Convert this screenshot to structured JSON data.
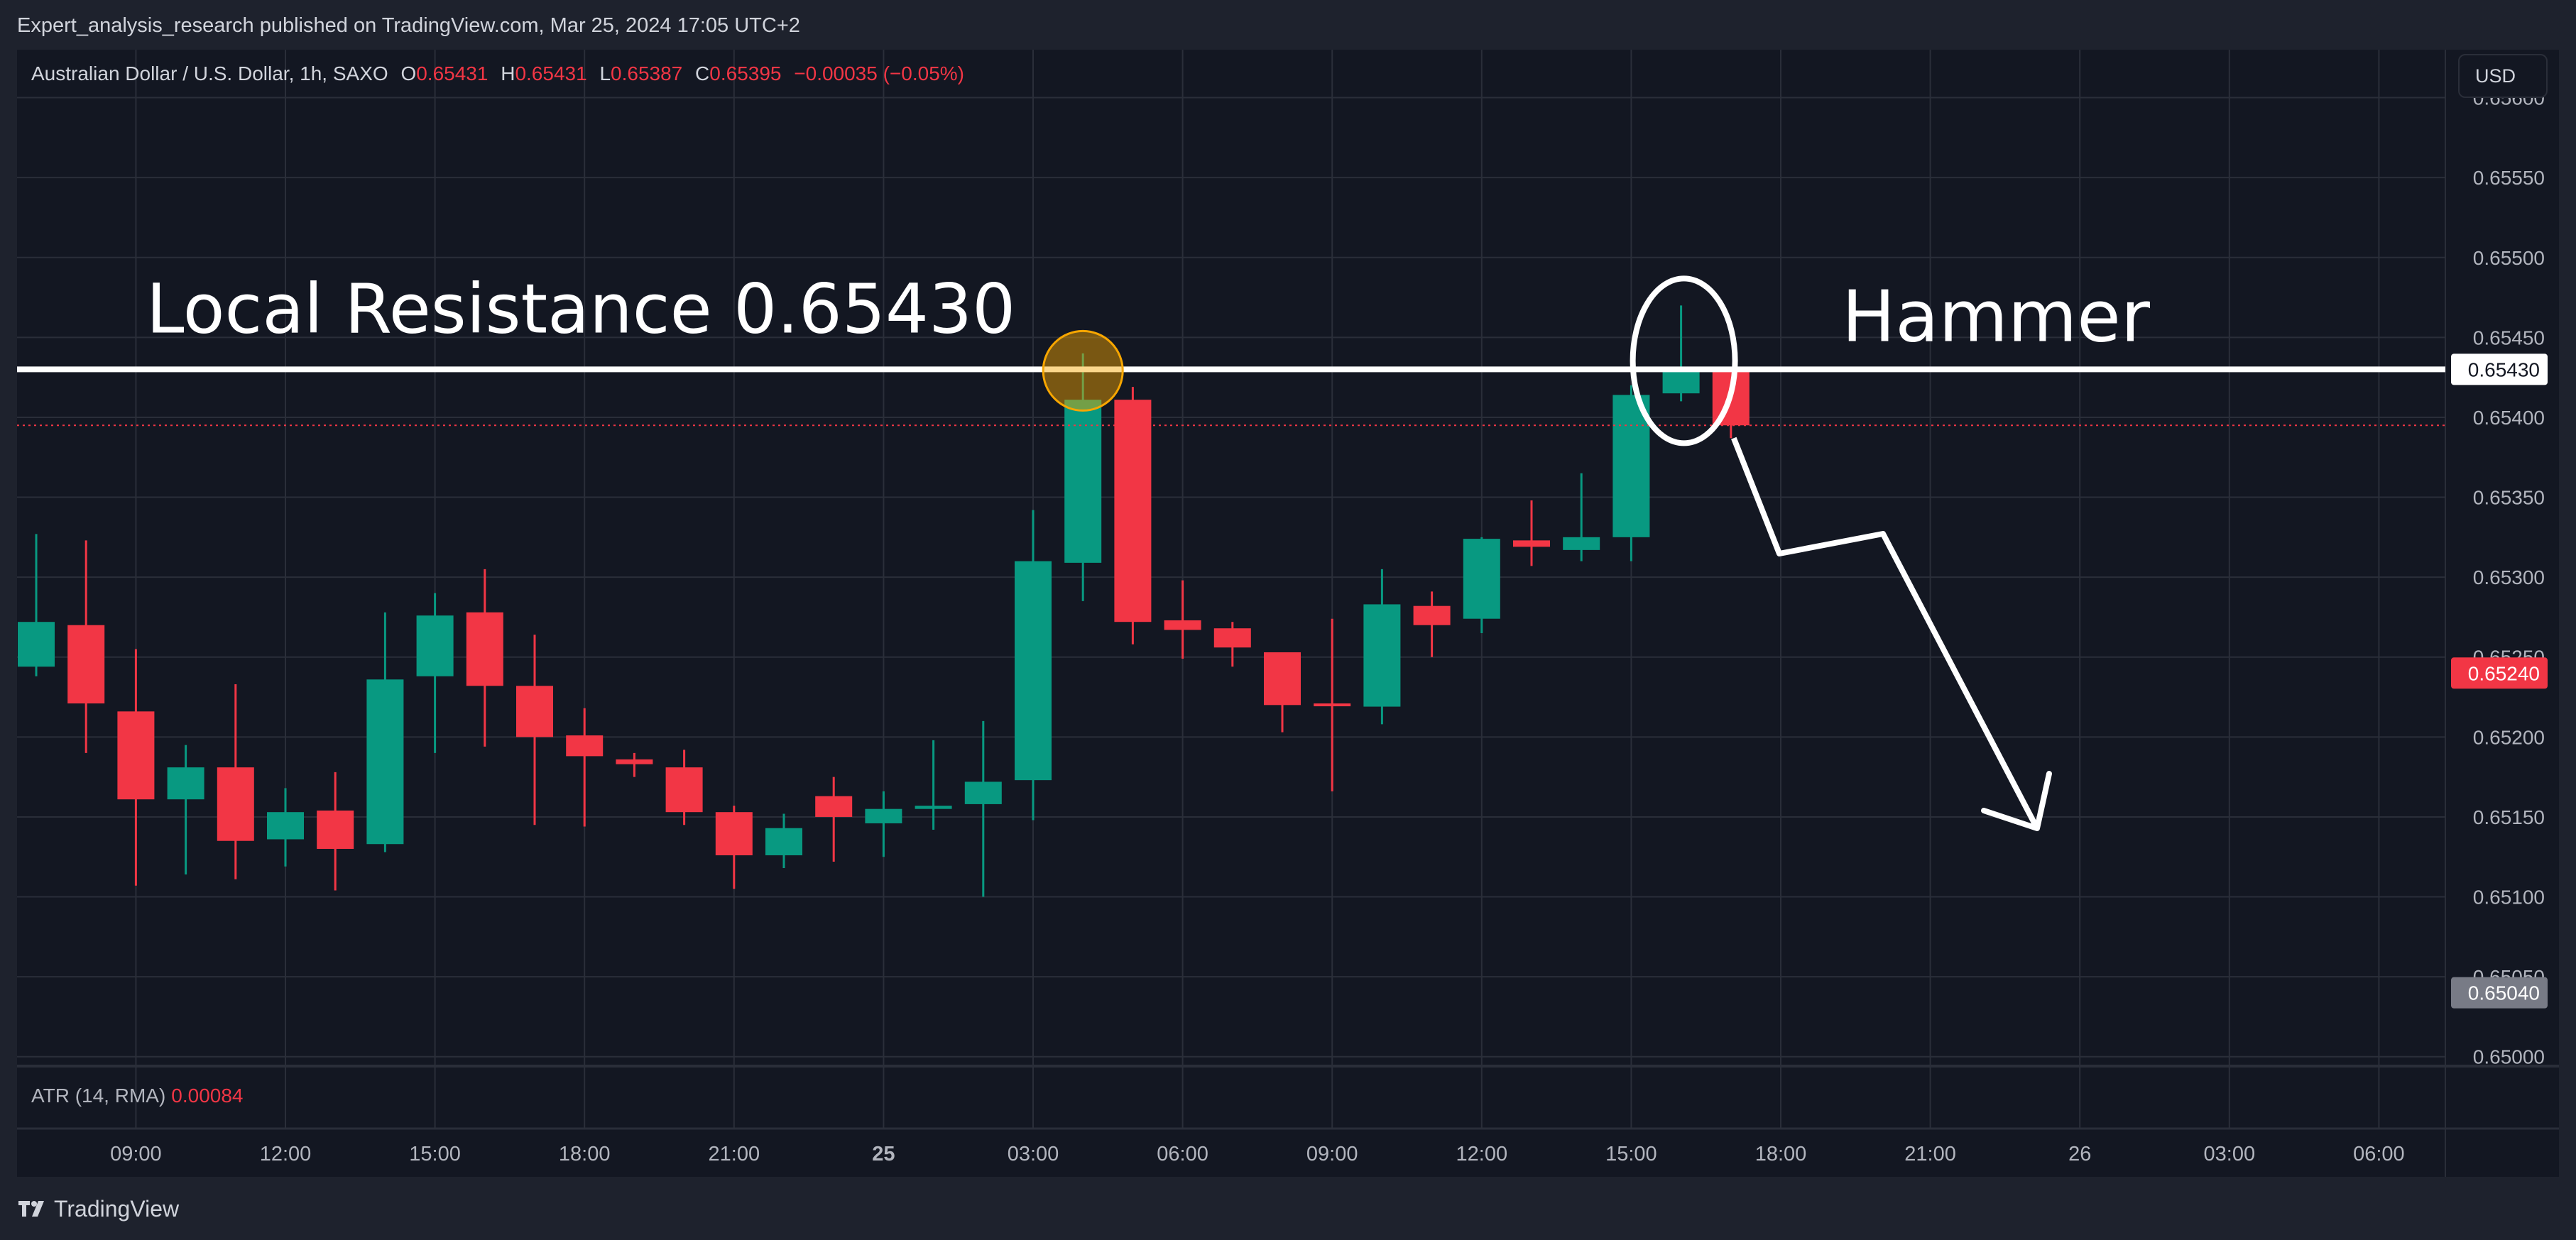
{
  "header": {
    "publisher_line": "Expert_analysis_research published on TradingView.com, Mar 25, 2024 17:05 UTC+2"
  },
  "legend": {
    "symbol": "Australian Dollar / U.S. Dollar, 1h, SAXO",
    "o_label": "O",
    "o_value": "0.65431",
    "h_label": "H",
    "h_value": "0.65431",
    "l_label": "L",
    "l_value": "0.65387",
    "c_label": "C",
    "c_value": "0.65395",
    "change": "−0.00035 (−0.05%)"
  },
  "currency_button": "USD",
  "atr": {
    "label": "ATR (14, RMA)",
    "value": "0.00084"
  },
  "footer": {
    "brand": "TradingView",
    "logo_icon": "tradingview-logo-icon"
  },
  "colors": {
    "up": "#089981",
    "down": "#f23645",
    "background": "#131722",
    "grid": "#2a2e39",
    "axis_text": "#b2b5be",
    "annotation": "#ffffff",
    "highlight_circle": "#f7a600"
  },
  "chart_data": {
    "type": "candlestick",
    "timeframe": "1h",
    "y_axis": {
      "side": "right",
      "ylim": [
        0.64995,
        0.6563
      ],
      "ticks": [
        "0.65000",
        "0.65050",
        "0.65100",
        "0.65150",
        "0.65200",
        "0.65250",
        "0.65300",
        "0.65350",
        "0.65400",
        "0.65450",
        "0.65500",
        "0.65550",
        "0.65600"
      ]
    },
    "x_axis": {
      "labels": [
        "09:00",
        "12:00",
        "15:00",
        "18:00",
        "21:00",
        "25",
        "03:00",
        "06:00",
        "09:00",
        "12:00",
        "15:00",
        "18:00",
        "21:00",
        "26",
        "03:00",
        "06:00"
      ],
      "bold_labels": [
        "25"
      ],
      "start_time": "Mar 24, 2024 07:00"
    },
    "price_labels": [
      {
        "value": 0.6543,
        "text": "0.65430",
        "style": "white"
      },
      {
        "value": 0.6524,
        "text": "0.65240",
        "style": "red"
      },
      {
        "value": 0.6504,
        "text": "0.65040",
        "style": "gray"
      }
    ],
    "current_price_line": 0.65395,
    "grid": true,
    "candles": [
      {
        "o": 0.65244,
        "h": 0.65327,
        "l": 0.65238,
        "c": 0.65272
      },
      {
        "o": 0.6527,
        "h": 0.65323,
        "l": 0.6519,
        "c": 0.65221
      },
      {
        "o": 0.65216,
        "h": 0.65255,
        "l": 0.65107,
        "c": 0.65161
      },
      {
        "o": 0.65161,
        "h": 0.65195,
        "l": 0.65114,
        "c": 0.65181
      },
      {
        "o": 0.65181,
        "h": 0.65233,
        "l": 0.65111,
        "c": 0.65135
      },
      {
        "o": 0.65136,
        "h": 0.65168,
        "l": 0.65119,
        "c": 0.65153
      },
      {
        "o": 0.65154,
        "h": 0.65178,
        "l": 0.65104,
        "c": 0.6513
      },
      {
        "o": 0.65133,
        "h": 0.65278,
        "l": 0.65128,
        "c": 0.65236
      },
      {
        "o": 0.65238,
        "h": 0.6529,
        "l": 0.6519,
        "c": 0.65276
      },
      {
        "o": 0.65278,
        "h": 0.65305,
        "l": 0.65194,
        "c": 0.65232
      },
      {
        "o": 0.65232,
        "h": 0.65264,
        "l": 0.65145,
        "c": 0.652
      },
      {
        "o": 0.65201,
        "h": 0.65218,
        "l": 0.65144,
        "c": 0.65188
      },
      {
        "o": 0.65186,
        "h": 0.6519,
        "l": 0.65175,
        "c": 0.65183
      },
      {
        "o": 0.65181,
        "h": 0.65192,
        "l": 0.65145,
        "c": 0.65153
      },
      {
        "o": 0.65153,
        "h": 0.65157,
        "l": 0.65105,
        "c": 0.65126
      },
      {
        "o": 0.65126,
        "h": 0.65152,
        "l": 0.65118,
        "c": 0.65143
      },
      {
        "o": 0.65163,
        "h": 0.65175,
        "l": 0.65122,
        "c": 0.6515
      },
      {
        "o": 0.65146,
        "h": 0.65166,
        "l": 0.65125,
        "c": 0.65155
      },
      {
        "o": 0.65155,
        "h": 0.65198,
        "l": 0.65142,
        "c": 0.65157
      },
      {
        "o": 0.65158,
        "h": 0.6521,
        "l": 0.651,
        "c": 0.65172
      },
      {
        "o": 0.65173,
        "h": 0.65342,
        "l": 0.65148,
        "c": 0.6531
      },
      {
        "o": 0.65309,
        "h": 0.6544,
        "l": 0.65285,
        "c": 0.65411
      },
      {
        "o": 0.65411,
        "h": 0.65419,
        "l": 0.65258,
        "c": 0.65272
      },
      {
        "o": 0.65273,
        "h": 0.65298,
        "l": 0.65249,
        "c": 0.65267
      },
      {
        "o": 0.65268,
        "h": 0.65272,
        "l": 0.65244,
        "c": 0.65256
      },
      {
        "o": 0.65253,
        "h": 0.65253,
        "l": 0.65203,
        "c": 0.6522
      },
      {
        "o": 0.65221,
        "h": 0.65274,
        "l": 0.65166,
        "c": 0.6522
      },
      {
        "o": 0.65219,
        "h": 0.65305,
        "l": 0.65208,
        "c": 0.65283
      },
      {
        "o": 0.65282,
        "h": 0.65291,
        "l": 0.6525,
        "c": 0.6527
      },
      {
        "o": 0.65274,
        "h": 0.65325,
        "l": 0.65265,
        "c": 0.65324
      },
      {
        "o": 0.65323,
        "h": 0.65348,
        "l": 0.65307,
        "c": 0.65319
      },
      {
        "o": 0.65317,
        "h": 0.65365,
        "l": 0.6531,
        "c": 0.65325
      },
      {
        "o": 0.65325,
        "h": 0.6542,
        "l": 0.6531,
        "c": 0.65414
      },
      {
        "o": 0.65415,
        "h": 0.6547,
        "l": 0.6541,
        "c": 0.6543
      },
      {
        "o": 0.65431,
        "h": 0.65431,
        "l": 0.65387,
        "c": 0.65395
      }
    ],
    "annotations": {
      "resistance_level": 0.6543,
      "resistance_text": "Local Resistance 0.65430",
      "hammer_text": "Hammer"
    }
  }
}
